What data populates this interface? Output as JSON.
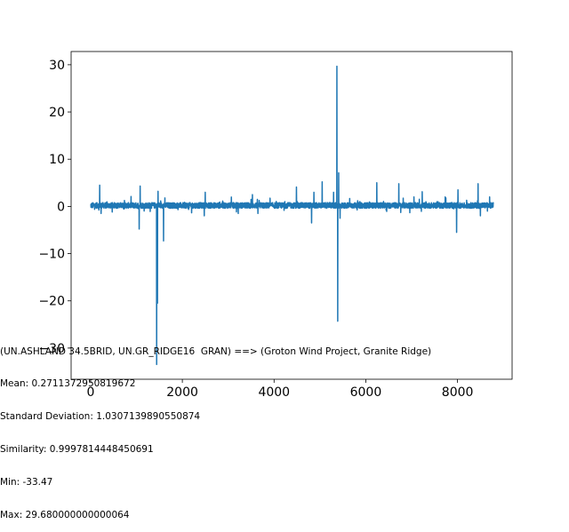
{
  "chart_data": {
    "type": "line",
    "title": "",
    "xlabel": "",
    "ylabel": "",
    "xlim": [
      -425,
      9190
    ],
    "ylim": [
      -36.6,
      32.8
    ],
    "xticks": [
      0,
      2000,
      4000,
      6000,
      8000
    ],
    "yticks": [
      -30,
      -20,
      -10,
      0,
      10,
      20,
      30
    ],
    "xtick_labels": [
      "0",
      "2000",
      "4000",
      "6000",
      "8000"
    ],
    "ytick_labels": [
      "−30",
      "−20",
      "−10",
      "0",
      "10",
      "20",
      "30"
    ],
    "grid": false,
    "series": [
      {
        "color": "#1f77b4",
        "n_points": 8784,
        "baseline_noise": 0.6,
        "x_key": [
          0,
          500,
          1000,
          1500,
          2000,
          2500,
          3000,
          3500,
          4000,
          4500,
          5000,
          5500,
          6000,
          6500,
          7000,
          7500,
          8000,
          8500,
          8784
        ],
        "spikes": [
          {
            "x": 200,
            "y": 4.5
          },
          {
            "x": 230,
            "y": -1.5
          },
          {
            "x": 1060,
            "y": -4.8
          },
          {
            "x": 1080,
            "y": 4.3
          },
          {
            "x": 1440,
            "y": -33.47
          },
          {
            "x": 1460,
            "y": -20.5
          },
          {
            "x": 1470,
            "y": 3.2
          },
          {
            "x": 1590,
            "y": -7.3
          },
          {
            "x": 1620,
            "y": 1.8
          },
          {
            "x": 2480,
            "y": -2.0
          },
          {
            "x": 2500,
            "y": 3.0
          },
          {
            "x": 3530,
            "y": 2.5
          },
          {
            "x": 3650,
            "y": -1.5
          },
          {
            "x": 4490,
            "y": 4.1
          },
          {
            "x": 4820,
            "y": -3.5
          },
          {
            "x": 4870,
            "y": 3.0
          },
          {
            "x": 5050,
            "y": 5.2
          },
          {
            "x": 5300,
            "y": 3.0
          },
          {
            "x": 5370,
            "y": 29.68
          },
          {
            "x": 5390,
            "y": -24.3
          },
          {
            "x": 5410,
            "y": 7.1
          },
          {
            "x": 5440,
            "y": -2.5
          },
          {
            "x": 6240,
            "y": 5.0
          },
          {
            "x": 6720,
            "y": 4.8
          },
          {
            "x": 7050,
            "y": 2.0
          },
          {
            "x": 7230,
            "y": 3.1
          },
          {
            "x": 7980,
            "y": -5.5
          },
          {
            "x": 8010,
            "y": 3.5
          },
          {
            "x": 8450,
            "y": 4.8
          },
          {
            "x": 8500,
            "y": -2.0
          },
          {
            "x": 8700,
            "y": 2.0
          }
        ]
      }
    ]
  },
  "annotation": {
    "line1": "(UN.ASHLAND 34.5BRID, UN.GR_RIDGE16  GRAN) ==> (Groton Wind Project, Granite Ridge)",
    "line2": "Mean: 0.2711372950819672",
    "line3": "Standard Deviation: 1.0307139890550874",
    "line4": "Similarity: 0.9997814448450691",
    "line5": "Min: -33.47",
    "line6": "Max: 29.680000000000064"
  }
}
